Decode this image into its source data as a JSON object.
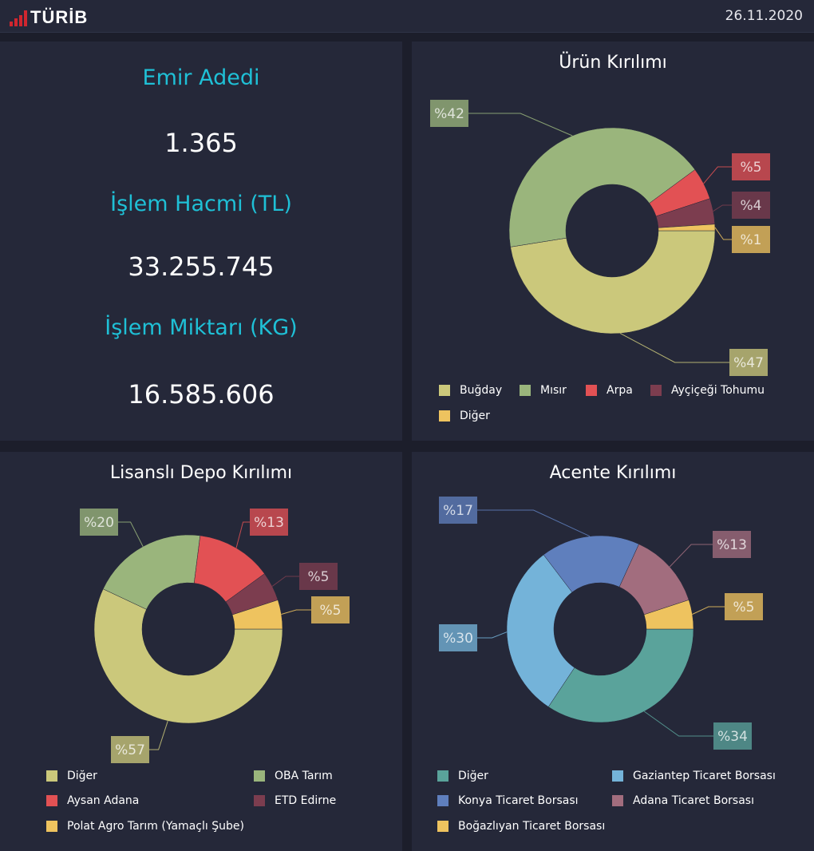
{
  "header": {
    "logo_text": "TÜRİB",
    "date": "26.11.2020"
  },
  "stats": [
    {
      "label": "Emir Adedi",
      "value": "1.365"
    },
    {
      "label": "İşlem Hacmi (TL)",
      "value": "33.255.745"
    },
    {
      "label": "İşlem Miktarı (KG)",
      "value": "16.585.606"
    }
  ],
  "chart_data": [
    {
      "type": "pie",
      "title": "Ürün Kırılımı",
      "categories": [
        "Buğday",
        "Mısır",
        "Arpa",
        "Ayçiçeği Tohumu",
        "Diğer"
      ],
      "values": [
        47,
        42,
        5,
        4,
        1
      ],
      "labels": [
        "%47",
        "%42",
        "%5",
        "%4",
        "%1"
      ],
      "colors": [
        "#cbc87b",
        "#9ab57c",
        "#e25154",
        "#7c3d4f",
        "#eec35f"
      ]
    },
    {
      "type": "pie",
      "title": "Lisanslı Depo Kırılımı",
      "categories": [
        "Diğer",
        "OBA Tarım",
        "Aysan Adana",
        "ETD Edirne",
        "Polat Agro Tarım (Yamaçlı Şube)"
      ],
      "values": [
        57,
        20,
        13,
        5,
        5
      ],
      "labels": [
        "%57",
        "%20",
        "%13",
        "%5",
        "%5"
      ],
      "colors": [
        "#cbc87b",
        "#9ab57c",
        "#e25154",
        "#7c3d4f",
        "#eec35f"
      ]
    },
    {
      "type": "pie",
      "title": "Acente Kırılımı",
      "categories": [
        "Diğer",
        "Gaziantep Ticaret Borsası",
        "Konya Ticaret Borsası",
        "Adana Ticaret Borsası",
        "Boğazlıyan Ticaret Borsası"
      ],
      "values": [
        34,
        30,
        17,
        13,
        5
      ],
      "labels": [
        "%34",
        "%30",
        "%17",
        "%13",
        "%5"
      ],
      "colors": [
        "#5aa39b",
        "#74b3d9",
        "#5f7fbd",
        "#a26d7e",
        "#eec35f"
      ]
    }
  ]
}
